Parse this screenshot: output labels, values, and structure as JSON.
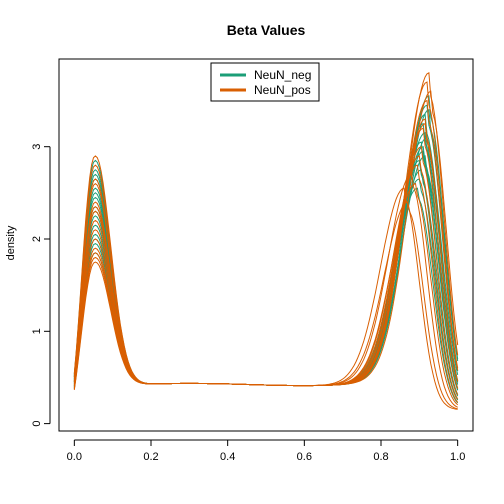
{
  "chart_data": {
    "type": "line",
    "title": "Beta Values",
    "xlabel": "",
    "ylabel": "density",
    "xlim": [
      -0.04,
      1.04
    ],
    "ylim": [
      -0.08,
      3.95
    ],
    "x_ticks": [
      0.0,
      0.2,
      0.4,
      0.6,
      0.8,
      1.0
    ],
    "x_tick_labels": [
      "0.0",
      "0.2",
      "0.4",
      "0.6",
      "0.8",
      "1.0"
    ],
    "y_ticks": [
      0,
      1,
      2,
      3
    ],
    "y_tick_labels": [
      "0",
      "1",
      "2",
      "3"
    ],
    "grid": false,
    "legend_position": "top-center",
    "series_groups": [
      {
        "name": "NeuN_neg",
        "color": "#1b9e77",
        "curves": [
          {
            "peak1": 2.85,
            "peak2": 3.55,
            "mode2": 0.925
          },
          {
            "peak1": 2.75,
            "peak2": 3.45,
            "mode2": 0.92
          },
          {
            "peak1": 2.65,
            "peak2": 3.35,
            "mode2": 0.915
          },
          {
            "peak1": 2.55,
            "peak2": 3.25,
            "mode2": 0.91
          },
          {
            "peak1": 2.45,
            "peak2": 3.15,
            "mode2": 0.915
          },
          {
            "peak1": 2.35,
            "peak2": 3.05,
            "mode2": 0.905
          },
          {
            "peak1": 2.25,
            "peak2": 2.95,
            "mode2": 0.91
          },
          {
            "peak1": 2.15,
            "peak2": 2.85,
            "mode2": 0.9
          },
          {
            "peak1": 2.05,
            "peak2": 2.75,
            "mode2": 0.905
          },
          {
            "peak1": 1.95,
            "peak2": 2.65,
            "mode2": 0.9
          },
          {
            "peak1": 1.85,
            "peak2": 2.55,
            "mode2": 0.895
          },
          {
            "peak1": 2.7,
            "peak2": 3.1,
            "mode2": 0.92
          },
          {
            "peak1": 2.5,
            "peak2": 2.9,
            "mode2": 0.915
          },
          {
            "peak1": 2.3,
            "peak2": 3.4,
            "mode2": 0.925
          },
          {
            "peak1": 2.0,
            "peak2": 3.0,
            "mode2": 0.91
          }
        ]
      },
      {
        "name": "NeuN_pos",
        "color": "#d95f02",
        "curves": [
          {
            "peak1": 2.9,
            "peak2": 3.8,
            "mode2": 0.925
          },
          {
            "peak1": 2.8,
            "peak2": 3.7,
            "mode2": 0.92
          },
          {
            "peak1": 2.6,
            "peak2": 3.6,
            "mode2": 0.93
          },
          {
            "peak1": 2.4,
            "peak2": 3.3,
            "mode2": 0.915
          },
          {
            "peak1": 2.3,
            "peak2": 3.2,
            "mode2": 0.91
          },
          {
            "peak1": 2.2,
            "peak2": 3.0,
            "mode2": 0.905
          },
          {
            "peak1": 2.1,
            "peak2": 2.9,
            "mode2": 0.9
          },
          {
            "peak1": 1.9,
            "peak2": 2.8,
            "mode2": 0.895
          },
          {
            "peak1": 1.8,
            "peak2": 2.6,
            "mode2": 0.89
          },
          {
            "peak1": 1.75,
            "peak2": 2.55,
            "mode2": 0.86
          },
          {
            "peak1": 2.35,
            "peak2": 3.5,
            "mode2": 0.92
          },
          {
            "peak1": 2.0,
            "peak2": 2.7,
            "mode2": 0.88
          },
          {
            "peak1": 2.65,
            "peak2": 3.25,
            "mode2": 0.915
          },
          {
            "peak1": 1.85,
            "peak2": 2.4,
            "mode2": 0.87
          }
        ]
      }
    ]
  }
}
